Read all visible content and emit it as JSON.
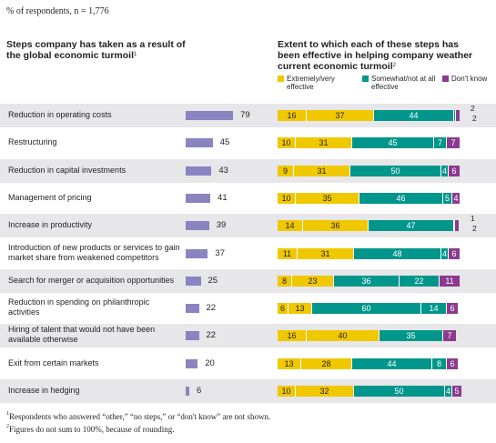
{
  "header": {
    "note": "% of respondents, n = 1,776",
    "left_title": "Steps company has taken as a result of the global economic turmoil",
    "left_title_sup": "1",
    "right_title": "Extent to which each of these steps has been effective in helping company weather current economic turmoil",
    "right_title_sup": "2"
  },
  "legend": {
    "extremely": "Extremely/very effective",
    "somewhat": "Somewhat/not at all effective",
    "dont_know": "Don't know"
  },
  "colors": {
    "bar": "#8a84c0",
    "band": "#e7e6e9",
    "extremely": "#f0c800",
    "somewhat": "#00968c",
    "dont_know": "#8b3a8f"
  },
  "chart_data": [
    {
      "type": "bar",
      "orientation": "horizontal",
      "categories": [
        "Reduction in operating costs",
        "Restructuring",
        "Reduction in capital investments",
        "Management of pricing",
        "Increase in productivity",
        "Introduction of new products or services to gain market share from weakened competitors",
        "Search for merger or acquisition opportunities",
        "Reduction in spending on philanthropic activities",
        "Hiring of talent that would not have been available otherwise",
        "Exit from certain markets",
        "Increase in hedging"
      ],
      "values": [
        79,
        45,
        43,
        41,
        39,
        37,
        25,
        22,
        22,
        20,
        6
      ],
      "xlim": [
        0,
        100
      ]
    },
    {
      "type": "bar",
      "orientation": "horizontal",
      "stacked": true,
      "xlim": [
        0,
        100
      ],
      "series": [
        {
          "name": "Extremely/very effective",
          "segments": [
            [
              16,
              37
            ],
            [
              10,
              31
            ],
            [
              9,
              31
            ],
            [
              10,
              35
            ],
            [
              14,
              36
            ],
            [
              11,
              31
            ],
            [
              8,
              23
            ],
            [
              6,
              13
            ],
            [
              16,
              40
            ],
            [
              13,
              28
            ],
            [
              10,
              32
            ]
          ]
        },
        {
          "name": "Somewhat/not at all effective",
          "segments": [
            [
              44
            ],
            [
              45,
              7
            ],
            [
              50,
              4
            ],
            [
              46,
              5
            ],
            [
              47
            ],
            [
              48,
              4
            ],
            [
              36,
              22
            ],
            [
              60,
              14
            ],
            [
              35
            ],
            [
              44,
              8
            ],
            [
              50,
              4
            ]
          ]
        },
        {
          "name": "Don't know",
          "values": [
            2,
            7,
            6,
            4,
            2,
            6,
            11,
            6,
            7,
            6,
            5
          ]
        }
      ],
      "small_segment_values": [
        2,
        null,
        null,
        null,
        1,
        null,
        null,
        null,
        null,
        null,
        null
      ]
    }
  ],
  "footnotes": {
    "f1": "Respondents who answered “other,” “no steps,” or “don't know” are not shown.",
    "f1_mark": "1",
    "f2": "Figures do not sum to 100%, because of rounding.",
    "f2_mark": "2"
  }
}
